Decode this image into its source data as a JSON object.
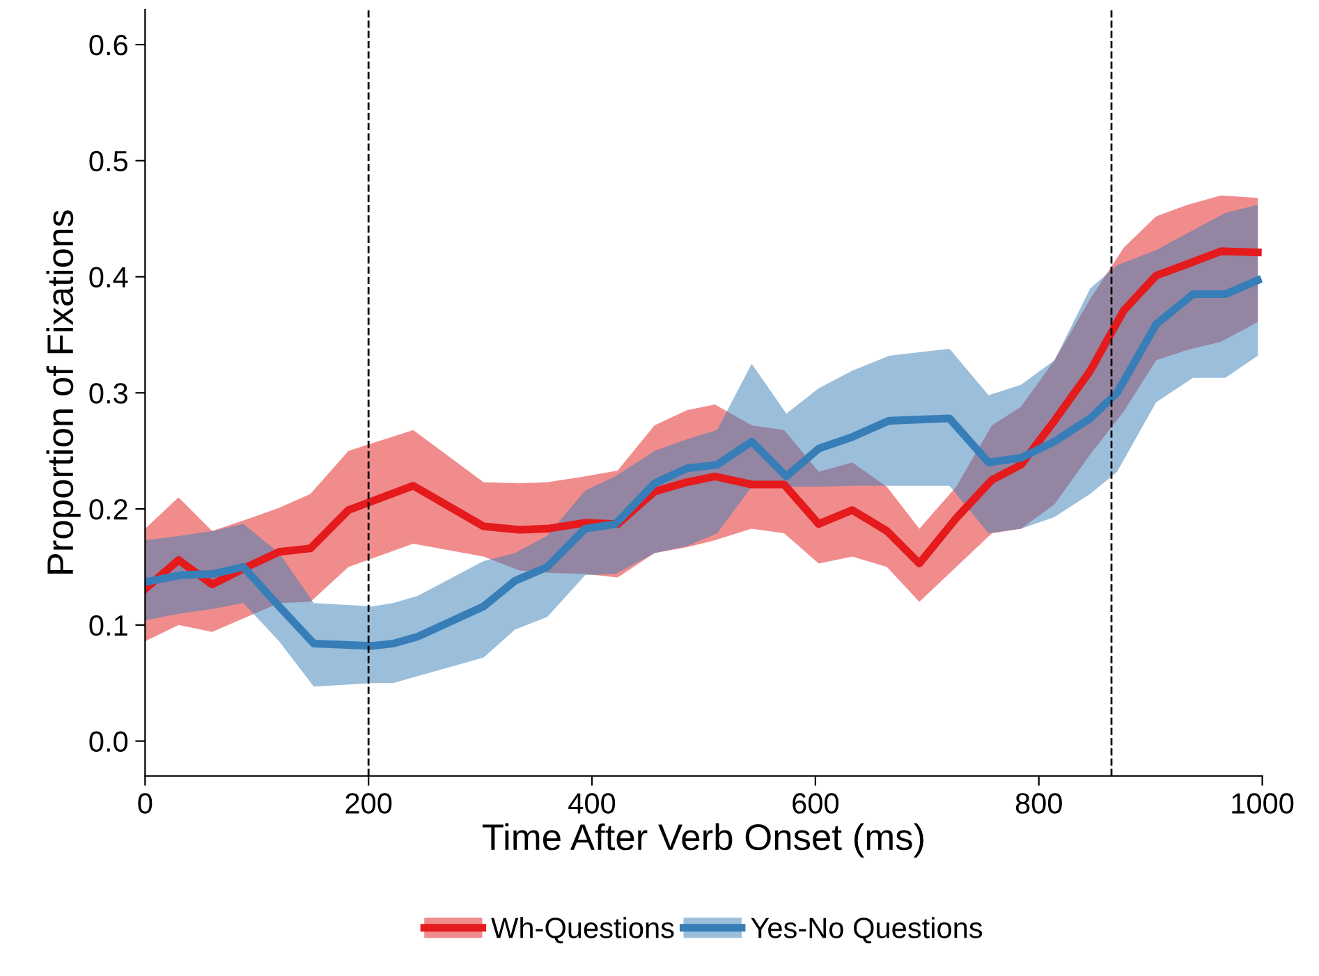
{
  "chart_data": {
    "type": "line",
    "xlabel": "Time After Verb Onset (ms)",
    "ylabel": "Proportion of Fixations",
    "xlim": [
      0,
      1000
    ],
    "xticks": [
      0,
      200,
      400,
      600,
      800,
      1000
    ],
    "ylim": [
      -0.03,
      0.63
    ],
    "yticks": [
      {
        "value": 0,
        "label": "0.0"
      },
      0.1,
      0.2,
      0.3,
      0.4,
      0.5,
      0.6
    ],
    "grid": false,
    "legend": "bottom",
    "line_style": "solid",
    "marker": "none",
    "ref_lines": [
      {
        "axis": "x",
        "value": 200,
        "line_style": "dashed",
        "color": "#000000"
      },
      {
        "axis": "x",
        "value": 865,
        "line_style": "dashed",
        "color": "#000000"
      }
    ],
    "series": [
      {
        "name": "Wh-Questions",
        "color": "#e41a1c",
        "x": [
          0,
          30,
          60,
          91,
          120,
          148,
          182,
          240,
          303,
          335,
          360,
          394,
          423,
          456,
          485,
          510,
          543,
          572,
          603,
          633,
          664,
          693,
          726,
          758,
          784,
          814,
          846,
          876,
          905,
          933,
          963,
          996
        ],
        "values": [
          0.131,
          0.156,
          0.135,
          0.15,
          0.163,
          0.166,
          0.199,
          0.22,
          0.185,
          0.182,
          0.183,
          0.188,
          0.187,
          0.215,
          0.223,
          0.228,
          0.221,
          0.221,
          0.187,
          0.199,
          0.181,
          0.153,
          0.192,
          0.225,
          0.238,
          0.276,
          0.319,
          0.371,
          0.401,
          0.411,
          0.422,
          0.421
        ],
        "upper": [
          0.183,
          0.21,
          0.181,
          0.191,
          0.201,
          0.213,
          0.25,
          0.268,
          0.223,
          0.222,
          0.223,
          0.228,
          0.233,
          0.272,
          0.285,
          0.29,
          0.272,
          0.268,
          0.232,
          0.24,
          0.219,
          0.183,
          0.219,
          0.272,
          0.288,
          0.328,
          0.381,
          0.425,
          0.452,
          0.462,
          0.47,
          0.468
        ],
        "lower": [
          0.086,
          0.1,
          0.094,
          0.107,
          0.119,
          0.12,
          0.15,
          0.17,
          0.159,
          0.147,
          0.145,
          0.144,
          0.141,
          0.162,
          0.167,
          0.173,
          0.183,
          0.179,
          0.153,
          0.159,
          0.15,
          0.12,
          0.15,
          0.179,
          0.183,
          0.204,
          0.247,
          0.284,
          0.328,
          0.337,
          0.344,
          0.361
        ]
      },
      {
        "name": "Yes-No Questions",
        "color": "#377eb8",
        "x": [
          0,
          32,
          61,
          88,
          120,
          151,
          203,
          222,
          244,
          303,
          331,
          360,
          394,
          421,
          456,
          485,
          512,
          543,
          574,
          603,
          633,
          666,
          720,
          755,
          784,
          814,
          846,
          870,
          905,
          938,
          967,
          996
        ],
        "values": [
          0.137,
          0.143,
          0.144,
          0.15,
          0.116,
          0.084,
          0.082,
          0.084,
          0.09,
          0.116,
          0.138,
          0.15,
          0.183,
          0.187,
          0.222,
          0.235,
          0.238,
          0.258,
          0.228,
          0.252,
          0.262,
          0.276,
          0.278,
          0.24,
          0.244,
          0.258,
          0.278,
          0.3,
          0.359,
          0.385,
          0.385,
          0.397
        ],
        "upper": [
          0.173,
          0.177,
          0.181,
          0.187,
          0.162,
          0.119,
          0.116,
          0.119,
          0.125,
          0.155,
          0.162,
          0.177,
          0.216,
          0.228,
          0.25,
          0.26,
          0.268,
          0.325,
          0.282,
          0.304,
          0.319,
          0.332,
          0.338,
          0.298,
          0.307,
          0.328,
          0.39,
          0.41,
          0.423,
          0.44,
          0.455,
          0.462
        ],
        "lower": [
          0.104,
          0.11,
          0.114,
          0.119,
          0.086,
          0.047,
          0.05,
          0.05,
          0.056,
          0.072,
          0.096,
          0.107,
          0.143,
          0.144,
          0.162,
          0.168,
          0.179,
          0.219,
          0.219,
          0.219,
          0.22,
          0.22,
          0.22,
          0.179,
          0.183,
          0.193,
          0.213,
          0.232,
          0.292,
          0.313,
          0.313,
          0.332
        ]
      }
    ]
  }
}
